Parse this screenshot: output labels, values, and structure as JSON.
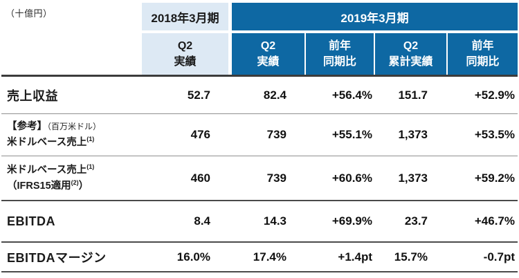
{
  "unit_label": "（十億円）",
  "colors": {
    "header_light_blue": "#dde9f4",
    "header_dark_blue": "#0e68a3",
    "header_dark_text": "#ffffff",
    "body_text": "#111111"
  },
  "table": {
    "col_groups": {
      "fy2018": "2018年3月期",
      "fy2019": "2019年3月期"
    },
    "sub_headers": [
      "Q2\n実績",
      "Q2\n実績",
      "前年\n同期比",
      "Q2\n累計実績",
      "前年\n同期比"
    ],
    "rows": [
      {
        "label": "売上収益",
        "values": [
          "52.7",
          "82.4",
          "+56.4%",
          "151.7",
          "+52.9%"
        ]
      },
      {
        "label_ref_bold": "【参考】",
        "label_ref_small": "（百万米ドル）",
        "label_line2": "米ドルベース売上",
        "label_line2_sup": "(1)",
        "values": [
          "476",
          "739",
          "+55.1%",
          "1,373",
          "+53.5%"
        ]
      },
      {
        "label_line1": "米ドルベース売上",
        "label_line1_sup": "(1)",
        "label_line2_pre": "（IFRS15適用",
        "label_line2_sup": "(2)",
        "label_line2_post": "）",
        "values": [
          "460",
          "739",
          "+60.6%",
          "1,373",
          "+59.2%"
        ]
      },
      {
        "label": "EBITDA",
        "values": [
          "8.4",
          "14.3",
          "+69.9%",
          "23.7",
          "+46.7%"
        ]
      },
      {
        "label": "EBITDAマージン",
        "values": [
          "16.0%",
          "17.4%",
          "+1.4pt",
          "15.7%",
          "-0.7pt"
        ]
      }
    ]
  }
}
